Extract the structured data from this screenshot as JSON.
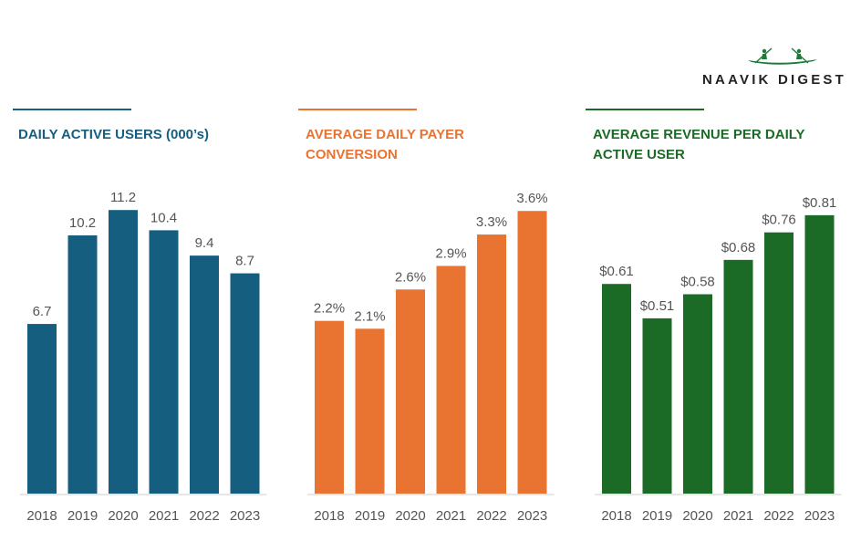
{
  "brand": {
    "name": "NAAVIK DIGEST",
    "logo_icon": "canoe-paddlers-icon",
    "color": "#1f7a3a"
  },
  "chart_data": [
    {
      "type": "bar",
      "title": "DAILY ACTIVE USERS (000’s)",
      "color": "#155e80",
      "categories": [
        "2018",
        "2019",
        "2020",
        "2021",
        "2022",
        "2023"
      ],
      "values": [
        6.7,
        10.2,
        11.2,
        10.4,
        9.4,
        8.7
      ],
      "labels": [
        "6.7",
        "10.2",
        "11.2",
        "10.4",
        "9.4",
        "8.7"
      ],
      "ylim": [
        0,
        12.0
      ],
      "grid": false
    },
    {
      "type": "bar",
      "title": "AVERAGE DAILY PAYER CONVERSION",
      "color": "#e97432",
      "categories": [
        "2018",
        "2019",
        "2020",
        "2021",
        "2022",
        "2023"
      ],
      "values": [
        2.2,
        2.1,
        2.6,
        2.9,
        3.3,
        3.6
      ],
      "labels": [
        "2.2%",
        "2.1%",
        "2.6%",
        "2.9%",
        "3.3%",
        "3.6%"
      ],
      "ylim": [
        0,
        3.87
      ],
      "grid": false
    },
    {
      "type": "bar",
      "title": "AVERAGE REVENUE PER DAILY ACTIVE USER",
      "color": "#1b6b26",
      "categories": [
        "2018",
        "2019",
        "2020",
        "2021",
        "2022",
        "2023"
      ],
      "values": [
        0.61,
        0.51,
        0.58,
        0.68,
        0.76,
        0.81
      ],
      "labels": [
        "$0.61",
        "$0.51",
        "$0.58",
        "$0.68",
        "$0.76",
        "$0.81"
      ],
      "ylim": [
        0,
        0.884
      ],
      "grid": false
    }
  ]
}
